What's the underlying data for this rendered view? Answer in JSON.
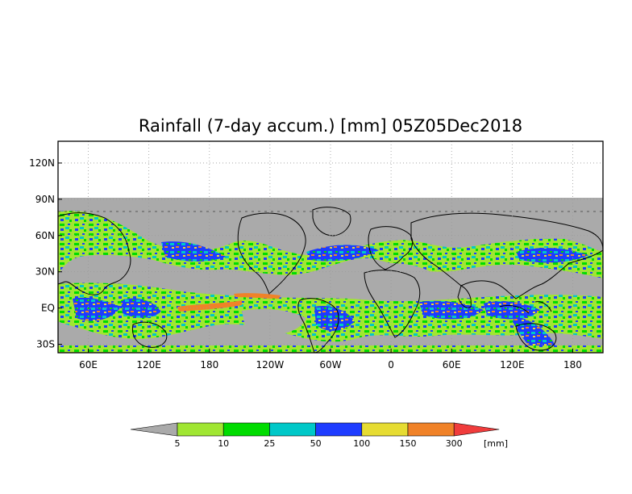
{
  "map": {
    "title": "Rainfall (7-day accum.) [mm] 05Z05Dec2018",
    "lat_ticks": [
      "120N",
      "90N",
      "60N",
      "30N",
      "EQ",
      "30S"
    ],
    "lon_ticks": [
      "60E",
      "120E",
      "180",
      "120W",
      "60W",
      "0",
      "60E",
      "120E",
      "180"
    ],
    "lat_values": [
      120,
      90,
      60,
      30,
      0,
      -30
    ],
    "lon_values": [
      60,
      120,
      180,
      240,
      300,
      360,
      420,
      480,
      540
    ],
    "lon_range": [
      30,
      570
    ],
    "lat_range": [
      -37,
      138
    ],
    "no_data_above_lat": 90,
    "no_data_color": "#aaaaaa",
    "grid": "dotted"
  },
  "legend": {
    "labels": [
      "5",
      "10",
      "25",
      "50",
      "100",
      "150",
      "300"
    ],
    "unit": "[mm]",
    "colors": [
      "#aaaaaa",
      "#a0e632",
      "#00dc00",
      "#00c8c8",
      "#1e3cff",
      "#e6dc32",
      "#f08228",
      "#f03c3c"
    ]
  }
}
